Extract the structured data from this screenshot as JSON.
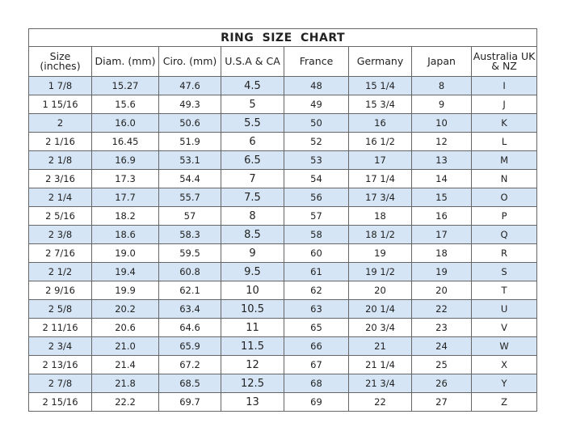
{
  "title": "RING SIZE CHART",
  "colors": {
    "alt_row": "#d5e5f5",
    "border": "#666666"
  },
  "columns": [
    "Size (inches)",
    "Diam. (mm)",
    "Ciro. (mm)",
    "U.S.A & CA",
    "France",
    "Germany",
    "Japan",
    "Australia UK & NZ"
  ],
  "rows": [
    [
      "1 7/8",
      "15.27",
      "47.6",
      "4.5",
      "48",
      "15 1/4",
      "8",
      "I"
    ],
    [
      "1 15/16",
      "15.6",
      "49.3",
      "5",
      "49",
      "15 3/4",
      "9",
      "J"
    ],
    [
      "2",
      "16.0",
      "50.6",
      "5.5",
      "50",
      "16",
      "10",
      "K"
    ],
    [
      "2 1/16",
      "16.45",
      "51.9",
      "6",
      "52",
      "16 1/2",
      "12",
      "L"
    ],
    [
      "2 1/8",
      "16.9",
      "53.1",
      "6.5",
      "53",
      "17",
      "13",
      "M"
    ],
    [
      "2 3/16",
      "17.3",
      "54.4",
      "7",
      "54",
      "17 1/4",
      "14",
      "N"
    ],
    [
      "2 1/4",
      "17.7",
      "55.7",
      "7.5",
      "56",
      "17 3/4",
      "15",
      "O"
    ],
    [
      "2 5/16",
      "18.2",
      "57",
      "8",
      "57",
      "18",
      "16",
      "P"
    ],
    [
      "2 3/8",
      "18.6",
      "58.3",
      "8.5",
      "58",
      "18 1/2",
      "17",
      "Q"
    ],
    [
      "2 7/16",
      "19.0",
      "59.5",
      "9",
      "60",
      "19",
      "18",
      "R"
    ],
    [
      "2 1/2",
      "19.4",
      "60.8",
      "9.5",
      "61",
      "19 1/2",
      "19",
      "S"
    ],
    [
      "2 9/16",
      "19.9",
      "62.1",
      "10",
      "62",
      "20",
      "20",
      "T"
    ],
    [
      "2 5/8",
      "20.2",
      "63.4",
      "10.5",
      "63",
      "20 1/4",
      "22",
      "U"
    ],
    [
      "2 11/16",
      "20.6",
      "64.6",
      "11",
      "65",
      "20 3/4",
      "23",
      "V"
    ],
    [
      "2 3/4",
      "21.0",
      "65.9",
      "11.5",
      "66",
      "21",
      "24",
      "W"
    ],
    [
      "2 13/16",
      "21.4",
      "67.2",
      "12",
      "67",
      "21 1/4",
      "25",
      "X"
    ],
    [
      "2 7/8",
      "21.8",
      "68.5",
      "12.5",
      "68",
      "21 3/4",
      "26",
      "Y"
    ],
    [
      "2 15/16",
      "22.2",
      "69.7",
      "13",
      "69",
      "22",
      "27",
      "Z"
    ]
  ]
}
